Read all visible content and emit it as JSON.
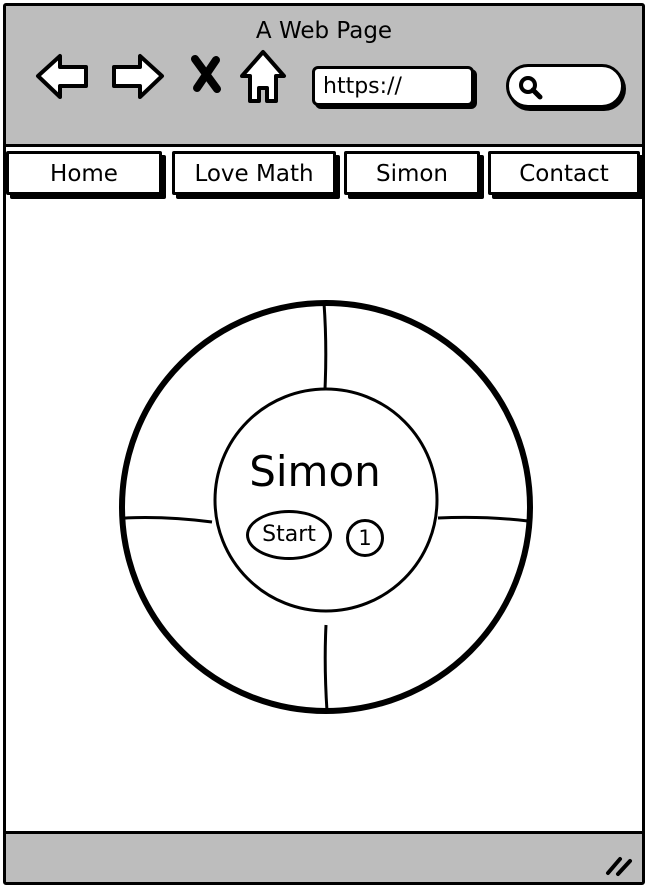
{
  "window": {
    "title": "A Web Page"
  },
  "toolbar": {
    "back_icon": "back-arrow-icon",
    "forward_icon": "forward-arrow-icon",
    "stop_icon": "close-icon",
    "home_icon": "home-icon",
    "url_value": "https://",
    "search_icon": "search-icon",
    "search_value": ""
  },
  "nav": {
    "tabs": [
      {
        "label": "Home"
      },
      {
        "label": "Love Math"
      },
      {
        "label": "Simon"
      },
      {
        "label": "Contact"
      }
    ]
  },
  "game": {
    "title": "Simon",
    "start_label": "Start",
    "count": "1"
  },
  "statusbar": {
    "resize_icon": "resize-grip-icon"
  }
}
